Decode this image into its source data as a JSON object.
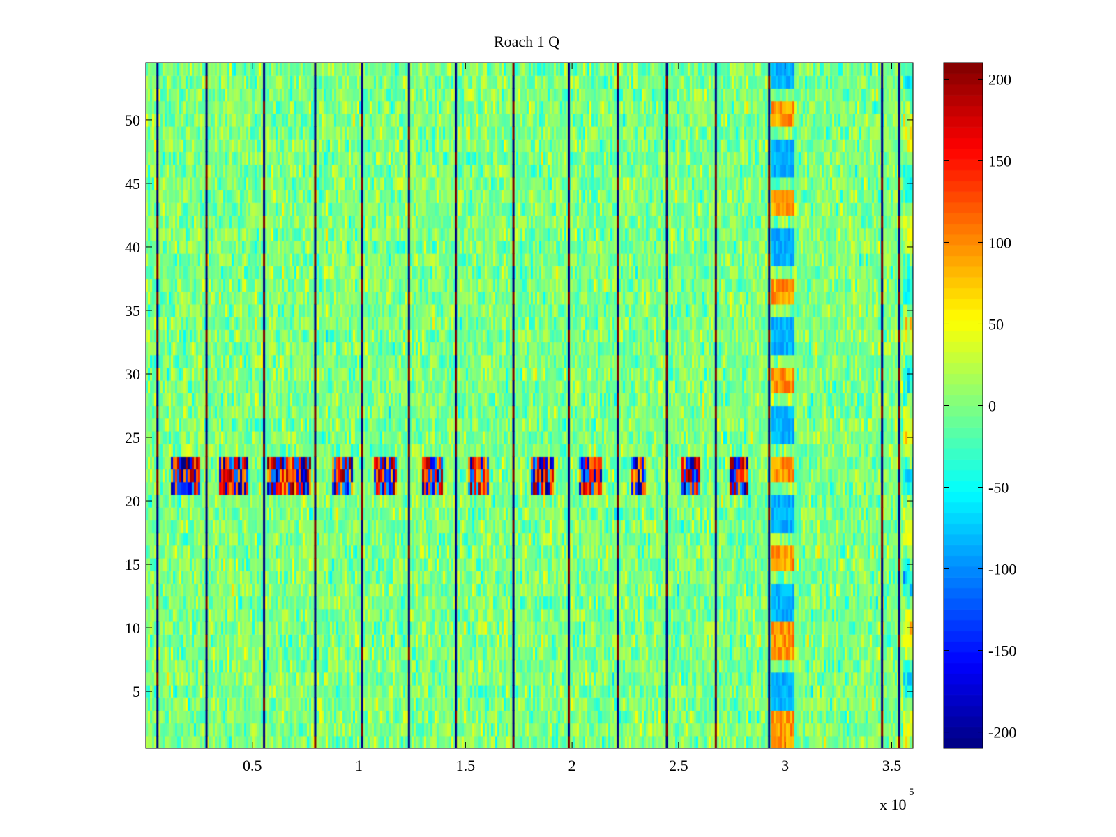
{
  "chart_data": {
    "type": "heatmap",
    "title": "Roach 1 Q",
    "xlabel": "",
    "ylabel": "",
    "x_range": [
      0,
      360000
    ],
    "y_range": [
      0.5,
      54.5
    ],
    "x_ticks": [
      50000,
      100000,
      150000,
      200000,
      250000,
      300000,
      350000
    ],
    "x_tick_labels": [
      "0.5",
      "1",
      "1.5",
      "2",
      "2.5",
      "3",
      "3.5"
    ],
    "x_exponent_label": "x 10",
    "x_exponent_power": "5",
    "y_ticks": [
      5,
      10,
      15,
      20,
      25,
      30,
      35,
      40,
      45,
      50
    ],
    "y_tick_labels": [
      "5",
      "10",
      "15",
      "20",
      "25",
      "30",
      "35",
      "40",
      "45",
      "50"
    ],
    "colorbar": {
      "colormap": "jet",
      "range": [
        -210,
        210
      ],
      "ticks": [
        -200,
        -150,
        -100,
        -50,
        0,
        50,
        100,
        150,
        200
      ],
      "tick_labels": [
        "-200",
        "-150",
        "-100",
        "-50",
        "0",
        "50",
        "100",
        "150",
        "200"
      ]
    },
    "rows": 54,
    "background_mean": 0,
    "background_spread": 40,
    "stripe_positions": [
      5500,
      28500,
      55500,
      79500,
      101500,
      123500,
      145500,
      172500,
      198500,
      221500,
      244500,
      267500,
      292500,
      345500,
      353500
    ],
    "stripe_extreme_value": 210,
    "burst_rows": [
      21,
      22,
      23
    ],
    "burst_segments": [
      [
        12000,
        26000
      ],
      [
        34000,
        48000
      ],
      [
        57000,
        78000
      ],
      [
        87000,
        97000
      ],
      [
        107000,
        118000
      ],
      [
        130000,
        139000
      ],
      [
        151000,
        161000
      ],
      [
        181000,
        191000
      ],
      [
        203000,
        214000
      ],
      [
        228000,
        235000
      ],
      [
        251000,
        260000
      ],
      [
        274000,
        283000
      ]
    ],
    "anomaly_band": [
      294000,
      304000
    ],
    "edge_band": [
      355000,
      360000
    ]
  }
}
